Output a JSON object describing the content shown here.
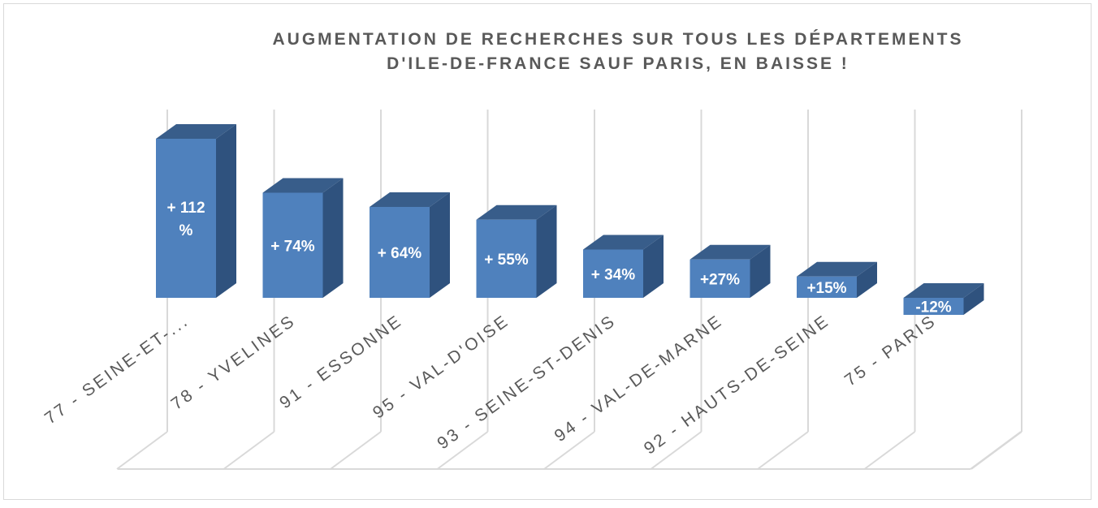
{
  "chart_data": {
    "type": "bar",
    "title": "AUGMENTATION DE RECHERCHES SUR TOUS LES DÉPARTEMENTS D'ILE-DE-FRANCE SAUF PARIS, EN BAISSE !",
    "title_lines": [
      "AUGMENTATION DE RECHERCHES SUR TOUS LES DÉPARTEMENTS",
      "D'ILE-DE-FRANCE SAUF PARIS, EN BAISSE !"
    ],
    "categories": [
      "77 - SEINE-ET-...",
      "78 - YVELINES",
      "91 - ESSONNE",
      "95 - VAL-D'OISE",
      "93 - SEINE-ST-DENIS",
      "94 - VAL-DE-MARNE",
      "92 - HAUTS-DE-SEINE",
      "75 - PARIS"
    ],
    "values": [
      112,
      74,
      64,
      55,
      34,
      27,
      15,
      -12
    ],
    "data_labels": [
      [
        "+ 112",
        "%"
      ],
      [
        "+ 74%"
      ],
      [
        "+ 64%"
      ],
      [
        "+ 55%"
      ],
      [
        "+ 34%"
      ],
      [
        "+27%"
      ],
      [
        "+15%"
      ],
      [
        "-12%"
      ]
    ],
    "style": "3d-column",
    "grid": true,
    "legend": "none",
    "colors": {
      "bar_front": "#4f81bd",
      "bar_side": "#2f527e",
      "bar_top": "#385d8a",
      "grid": "#d9d9d9",
      "text": "#595959"
    }
  }
}
